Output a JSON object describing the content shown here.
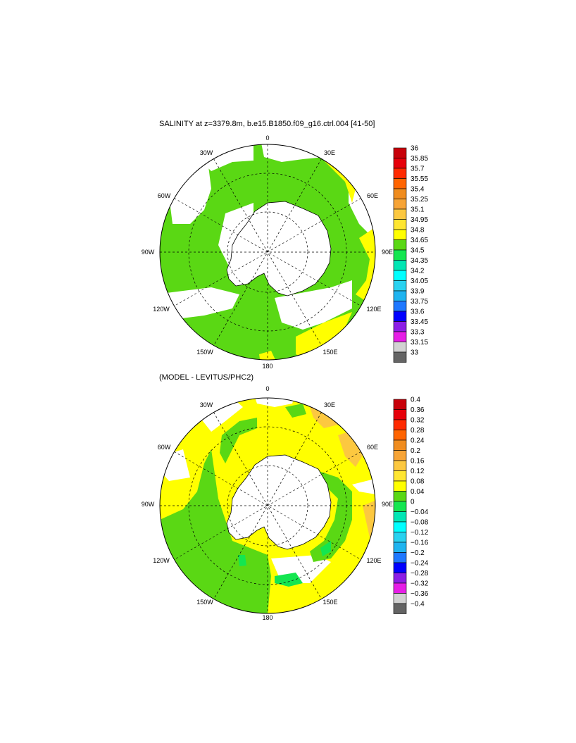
{
  "panels": [
    {
      "id": "top",
      "title": "SALINITY at z=3379.8m, b.e15.B1850.f09_g16.ctrl.004 [41-50]",
      "lon_labels": {
        "0": "0",
        "30E": "30E",
        "60E": "60E",
        "90E": "90E",
        "120E": "120E",
        "150E": "150E",
        "180": "180",
        "150W": "150W",
        "120W": "120W",
        "90W": "90W",
        "60W": "60W",
        "30W": "30W"
      },
      "colorbar": {
        "levels": [
          "36",
          "35.85",
          "35.7",
          "35.55",
          "35.4",
          "35.25",
          "35.1",
          "34.95",
          "34.8",
          "34.65",
          "34.5",
          "34.35",
          "34.2",
          "34.05",
          "33.9",
          "33.75",
          "33.6",
          "33.45",
          "33.3",
          "33.15",
          "33"
        ],
        "colors": [
          "#c8000a",
          "#e6000a",
          "#ff2a00",
          "#ff6400",
          "#f08c1e",
          "#f7a436",
          "#fcc840",
          "#ffe631",
          "#ffff00",
          "#5ad814",
          "#14e650",
          "#00e6b4",
          "#00ffff",
          "#28d2f0",
          "#1eb4f0",
          "#1e78ff",
          "#0000ff",
          "#8c1ee6",
          "#e61ee6",
          "#d2d2d2",
          "#646464"
        ]
      }
    },
    {
      "id": "bottom",
      "title": "(MODEL - LEVITUS/PHC2)",
      "lon_labels": {
        "0": "0",
        "30E": "30E",
        "60E": "60E",
        "90E": "90E",
        "120E": "120E",
        "150E": "150E",
        "180": "180",
        "150W": "150W",
        "120W": "120W",
        "90W": "90W",
        "60W": "60W",
        "30W": "30W"
      },
      "colorbar": {
        "levels": [
          "0.4",
          "0.36",
          "0.32",
          "0.28",
          "0.24",
          "0.2",
          "0.16",
          "0.12",
          "0.08",
          "0.04",
          "0",
          "−0.04",
          "−0.08",
          "−0.12",
          "−0.16",
          "−0.2",
          "−0.24",
          "−0.28",
          "−0.32",
          "−0.36",
          "−0.4"
        ],
        "colors": [
          "#c8000a",
          "#e6000a",
          "#ff2a00",
          "#ff6400",
          "#f08c1e",
          "#f7a436",
          "#fcc840",
          "#ffe631",
          "#ffff00",
          "#5ad814",
          "#14e650",
          "#00e6b4",
          "#00ffff",
          "#28d2f0",
          "#1eb4f0",
          "#1e78ff",
          "#0000ff",
          "#8c1ee6",
          "#e61ee6",
          "#d2d2d2",
          "#646464"
        ]
      }
    }
  ],
  "colors": {
    "land": "#ffffff",
    "missing": "#ffffff",
    "green": "#5ad814",
    "yellow": "#ffff00",
    "orange_light": "#fcc840",
    "teal": "#14e650"
  }
}
